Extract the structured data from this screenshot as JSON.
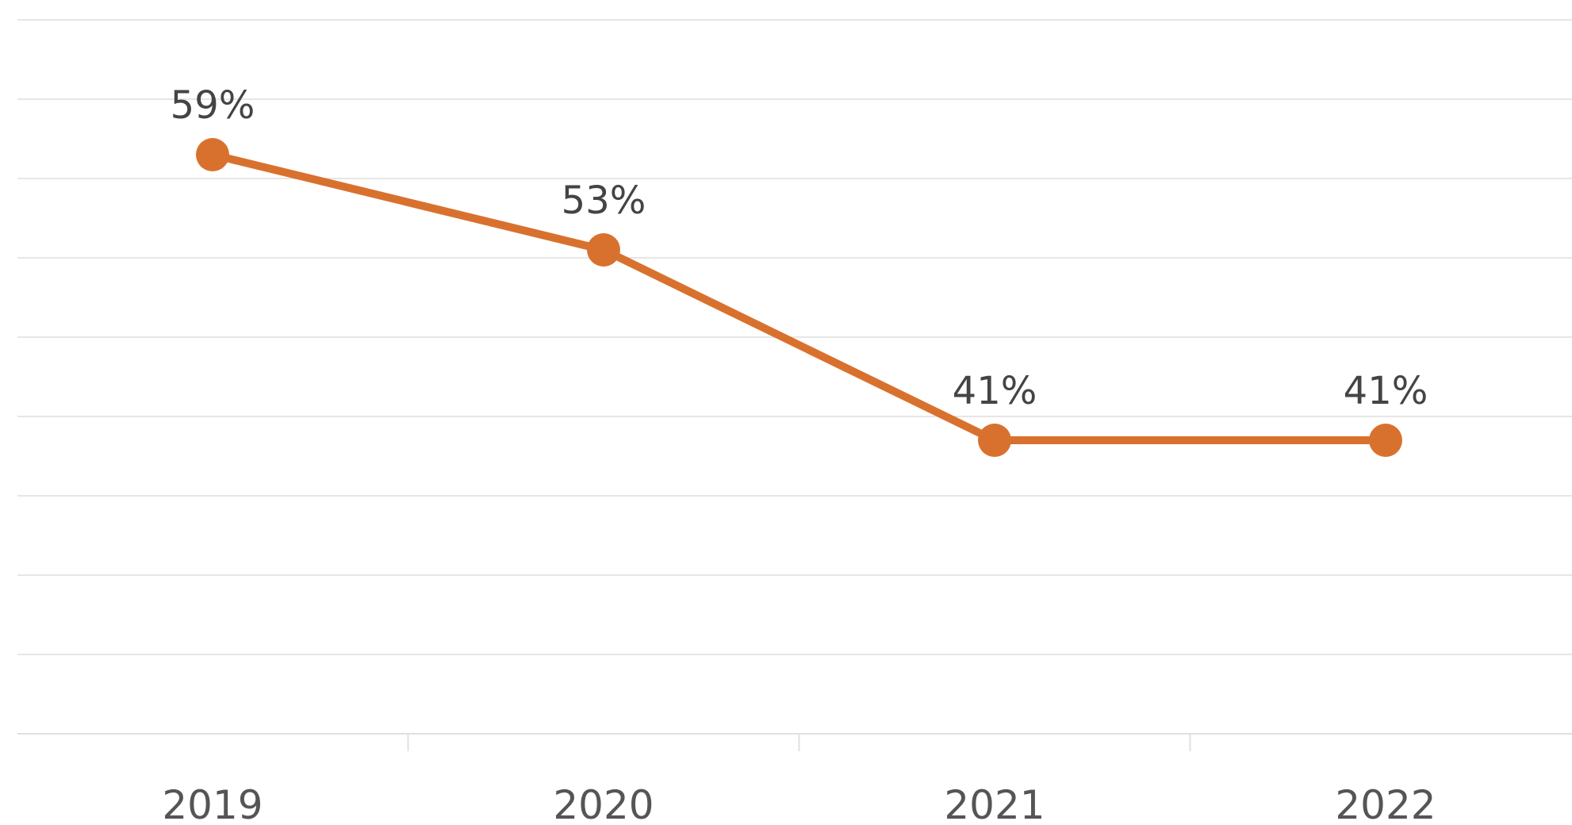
{
  "colors": {
    "series": "#d9712e",
    "background": "#ffffff"
  },
  "chart_data": {
    "type": "line",
    "x": [
      "2019",
      "2020",
      "2021",
      "2022"
    ],
    "series": [
      {
        "values": [
          59,
          53,
          41,
          41
        ],
        "labels": [
          "59%",
          "53%",
          "41%",
          "41%"
        ]
      }
    ],
    "ylim": [
      22.5,
      67.5
    ],
    "y_unit": "%",
    "y_tick_labels_shown": false,
    "grid": "horizontal",
    "legend": "none"
  }
}
